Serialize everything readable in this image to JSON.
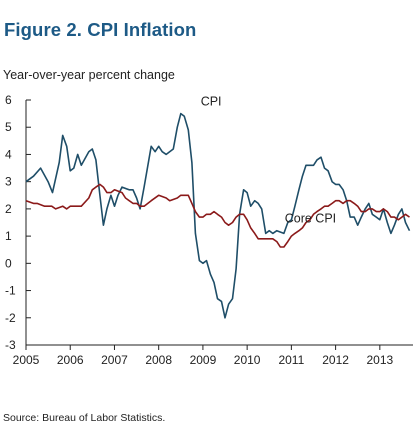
{
  "figure_title": "Figure 2.  CPI Inflation",
  "ylabel": "Year-over-year percent change",
  "source": "Source: Bureau of Labor Statistics.",
  "colors": {
    "title": "#1d5a86",
    "cpi": "#1f4e68",
    "core": "#8b1a1a",
    "axis": "#222222"
  },
  "chart_data": {
    "type": "line",
    "title": "Figure 2.  CPI Inflation",
    "ylabel": "Year-over-year percent change",
    "xlabel": "",
    "xlim": [
      2005.0,
      2013.75
    ],
    "ylim": [
      -3,
      6
    ],
    "x_ticks": [
      2005,
      2006,
      2007,
      2008,
      2009,
      2010,
      2011,
      2012,
      2013
    ],
    "y_ticks": [
      -3,
      -2,
      -1,
      0,
      1,
      2,
      3,
      4,
      5,
      6
    ],
    "grid": false,
    "legend": "inline labels",
    "annotations": [
      {
        "text": "CPI",
        "series": "CPI"
      },
      {
        "text": "Core CPI",
        "series": "Core CPI"
      }
    ],
    "series": [
      {
        "name": "CPI",
        "points": [
          [
            2005.0,
            3.0
          ],
          [
            2005.17,
            3.2
          ],
          [
            2005.33,
            3.5
          ],
          [
            2005.5,
            3.0
          ],
          [
            2005.6,
            2.6
          ],
          [
            2005.75,
            3.7
          ],
          [
            2005.83,
            4.7
          ],
          [
            2005.92,
            4.3
          ],
          [
            2006.0,
            3.4
          ],
          [
            2006.08,
            3.5
          ],
          [
            2006.17,
            4.0
          ],
          [
            2006.25,
            3.6
          ],
          [
            2006.42,
            4.1
          ],
          [
            2006.5,
            4.2
          ],
          [
            2006.58,
            3.8
          ],
          [
            2006.67,
            2.5
          ],
          [
            2006.75,
            1.4
          ],
          [
            2006.83,
            2.0
          ],
          [
            2006.92,
            2.5
          ],
          [
            2007.0,
            2.1
          ],
          [
            2007.08,
            2.5
          ],
          [
            2007.17,
            2.8
          ],
          [
            2007.33,
            2.7
          ],
          [
            2007.42,
            2.7
          ],
          [
            2007.5,
            2.4
          ],
          [
            2007.58,
            2.0
          ],
          [
            2007.67,
            2.8
          ],
          [
            2007.83,
            4.3
          ],
          [
            2007.92,
            4.1
          ],
          [
            2008.0,
            4.3
          ],
          [
            2008.08,
            4.1
          ],
          [
            2008.17,
            4.0
          ],
          [
            2008.33,
            4.2
          ],
          [
            2008.42,
            5.0
          ],
          [
            2008.5,
            5.5
          ],
          [
            2008.58,
            5.4
          ],
          [
            2008.67,
            4.9
          ],
          [
            2008.75,
            3.7
          ],
          [
            2008.83,
            1.1
          ],
          [
            2008.92,
            0.1
          ],
          [
            2009.0,
            0.0
          ],
          [
            2009.08,
            0.1
          ],
          [
            2009.17,
            -0.4
          ],
          [
            2009.25,
            -0.7
          ],
          [
            2009.33,
            -1.3
          ],
          [
            2009.42,
            -1.4
          ],
          [
            2009.5,
            -2.0
          ],
          [
            2009.58,
            -1.5
          ],
          [
            2009.67,
            -1.3
          ],
          [
            2009.75,
            -0.2
          ],
          [
            2009.83,
            1.8
          ],
          [
            2009.92,
            2.7
          ],
          [
            2010.0,
            2.6
          ],
          [
            2010.08,
            2.1
          ],
          [
            2010.17,
            2.3
          ],
          [
            2010.25,
            2.2
          ],
          [
            2010.33,
            2.0
          ],
          [
            2010.42,
            1.1
          ],
          [
            2010.5,
            1.2
          ],
          [
            2010.58,
            1.1
          ],
          [
            2010.67,
            1.2
          ],
          [
            2010.83,
            1.1
          ],
          [
            2010.92,
            1.5
          ],
          [
            2011.0,
            1.6
          ],
          [
            2011.08,
            2.1
          ],
          [
            2011.17,
            2.7
          ],
          [
            2011.25,
            3.2
          ],
          [
            2011.33,
            3.6
          ],
          [
            2011.42,
            3.6
          ],
          [
            2011.5,
            3.6
          ],
          [
            2011.58,
            3.8
          ],
          [
            2011.67,
            3.9
          ],
          [
            2011.75,
            3.5
          ],
          [
            2011.83,
            3.4
          ],
          [
            2011.92,
            3.0
          ],
          [
            2012.0,
            2.9
          ],
          [
            2012.08,
            2.9
          ],
          [
            2012.17,
            2.7
          ],
          [
            2012.25,
            2.3
          ],
          [
            2012.33,
            1.7
          ],
          [
            2012.42,
            1.7
          ],
          [
            2012.5,
            1.4
          ],
          [
            2012.58,
            1.7
          ],
          [
            2012.67,
            2.0
          ],
          [
            2012.75,
            2.2
          ],
          [
            2012.83,
            1.8
          ],
          [
            2012.92,
            1.7
          ],
          [
            2013.0,
            1.6
          ],
          [
            2013.08,
            2.0
          ],
          [
            2013.17,
            1.5
          ],
          [
            2013.25,
            1.1
          ],
          [
            2013.33,
            1.4
          ],
          [
            2013.42,
            1.8
          ],
          [
            2013.5,
            2.0
          ],
          [
            2013.58,
            1.5
          ],
          [
            2013.67,
            1.2
          ]
        ]
      },
      {
        "name": "Core CPI",
        "points": [
          [
            2005.0,
            2.3
          ],
          [
            2005.17,
            2.2
          ],
          [
            2005.25,
            2.2
          ],
          [
            2005.42,
            2.1
          ],
          [
            2005.5,
            2.1
          ],
          [
            2005.58,
            2.1
          ],
          [
            2005.67,
            2.0
          ],
          [
            2005.83,
            2.1
          ],
          [
            2005.92,
            2.0
          ],
          [
            2006.0,
            2.1
          ],
          [
            2006.08,
            2.1
          ],
          [
            2006.25,
            2.1
          ],
          [
            2006.42,
            2.4
          ],
          [
            2006.5,
            2.7
          ],
          [
            2006.58,
            2.8
          ],
          [
            2006.67,
            2.9
          ],
          [
            2006.75,
            2.8
          ],
          [
            2006.83,
            2.6
          ],
          [
            2006.92,
            2.6
          ],
          [
            2007.0,
            2.7
          ],
          [
            2007.17,
            2.6
          ],
          [
            2007.25,
            2.4
          ],
          [
            2007.42,
            2.2
          ],
          [
            2007.5,
            2.2
          ],
          [
            2007.58,
            2.1
          ],
          [
            2007.67,
            2.1
          ],
          [
            2007.83,
            2.3
          ],
          [
            2008.0,
            2.5
          ],
          [
            2008.17,
            2.4
          ],
          [
            2008.25,
            2.3
          ],
          [
            2008.42,
            2.4
          ],
          [
            2008.5,
            2.5
          ],
          [
            2008.58,
            2.5
          ],
          [
            2008.67,
            2.5
          ],
          [
            2008.75,
            2.2
          ],
          [
            2008.83,
            1.9
          ],
          [
            2008.92,
            1.7
          ],
          [
            2009.0,
            1.7
          ],
          [
            2009.08,
            1.8
          ],
          [
            2009.17,
            1.8
          ],
          [
            2009.25,
            1.9
          ],
          [
            2009.33,
            1.8
          ],
          [
            2009.42,
            1.7
          ],
          [
            2009.5,
            1.5
          ],
          [
            2009.58,
            1.4
          ],
          [
            2009.67,
            1.5
          ],
          [
            2009.75,
            1.7
          ],
          [
            2009.83,
            1.8
          ],
          [
            2009.92,
            1.8
          ],
          [
            2010.0,
            1.6
          ],
          [
            2010.08,
            1.3
          ],
          [
            2010.17,
            1.1
          ],
          [
            2010.25,
            0.9
          ],
          [
            2010.33,
            0.9
          ],
          [
            2010.42,
            0.9
          ],
          [
            2010.5,
            0.9
          ],
          [
            2010.58,
            0.9
          ],
          [
            2010.67,
            0.8
          ],
          [
            2010.75,
            0.6
          ],
          [
            2010.83,
            0.6
          ],
          [
            2010.92,
            0.8
          ],
          [
            2011.0,
            1.0
          ],
          [
            2011.08,
            1.1
          ],
          [
            2011.17,
            1.2
          ],
          [
            2011.25,
            1.3
          ],
          [
            2011.33,
            1.5
          ],
          [
            2011.42,
            1.6
          ],
          [
            2011.5,
            1.8
          ],
          [
            2011.58,
            1.9
          ],
          [
            2011.67,
            2.0
          ],
          [
            2011.75,
            2.1
          ],
          [
            2011.83,
            2.1
          ],
          [
            2011.92,
            2.2
          ],
          [
            2012.0,
            2.3
          ],
          [
            2012.08,
            2.3
          ],
          [
            2012.17,
            2.2
          ],
          [
            2012.25,
            2.3
          ],
          [
            2012.33,
            2.3
          ],
          [
            2012.42,
            2.2
          ],
          [
            2012.5,
            2.1
          ],
          [
            2012.58,
            1.9
          ],
          [
            2012.67,
            1.9
          ],
          [
            2012.75,
            2.0
          ],
          [
            2012.83,
            2.0
          ],
          [
            2012.92,
            1.9
          ],
          [
            2013.0,
            1.9
          ],
          [
            2013.08,
            2.0
          ],
          [
            2013.17,
            1.9
          ],
          [
            2013.25,
            1.7
          ],
          [
            2013.33,
            1.7
          ],
          [
            2013.42,
            1.6
          ],
          [
            2013.5,
            1.7
          ],
          [
            2013.58,
            1.8
          ],
          [
            2013.67,
            1.7
          ]
        ]
      }
    ]
  }
}
